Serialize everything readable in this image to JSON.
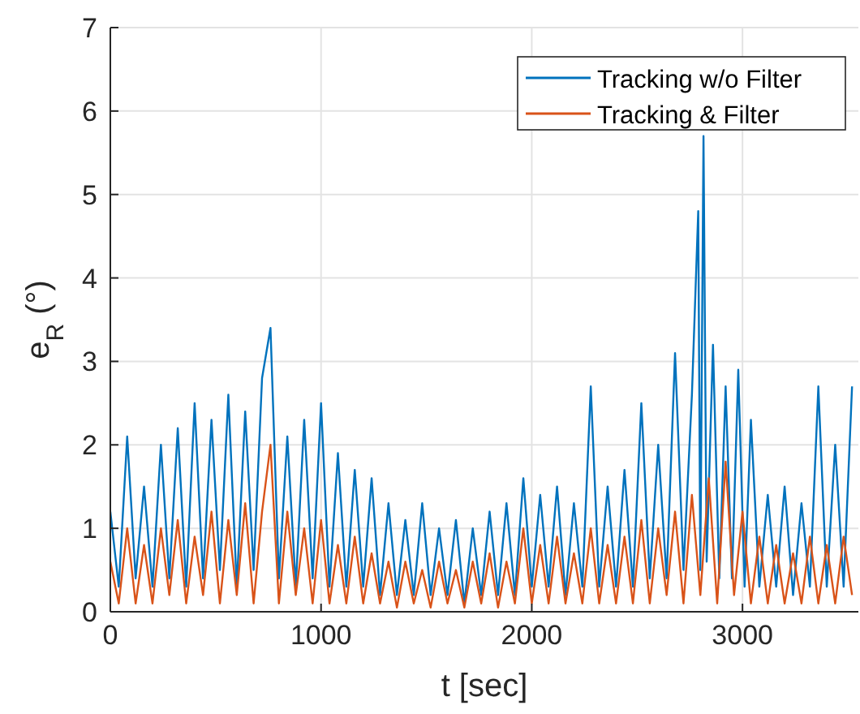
{
  "chart_data": {
    "type": "line",
    "xlabel": "t [sec]",
    "ylabel": "e$_{R}$ (°)",
    "xlim": [
      0,
      3550
    ],
    "xticks": [
      0,
      1000,
      2000,
      3000
    ],
    "ylim": [
      0,
      7
    ],
    "yticks": [
      0,
      1,
      2,
      3,
      4,
      5,
      6,
      7
    ],
    "grid": true,
    "legend": "top right",
    "line_style": "solid",
    "marker": "none",
    "series": [
      {
        "name": "Tracking w/o Filter",
        "color": "#0072bd",
        "x": [
          0,
          40,
          80,
          120,
          160,
          200,
          240,
          280,
          320,
          360,
          400,
          440,
          480,
          520,
          560,
          600,
          640,
          680,
          720,
          760,
          800,
          840,
          880,
          920,
          960,
          1000,
          1040,
          1080,
          1120,
          1160,
          1200,
          1240,
          1280,
          1320,
          1360,
          1400,
          1440,
          1480,
          1520,
          1560,
          1600,
          1640,
          1680,
          1720,
          1760,
          1800,
          1840,
          1880,
          1920,
          1960,
          2000,
          2040,
          2080,
          2120,
          2160,
          2200,
          2240,
          2280,
          2320,
          2360,
          2400,
          2440,
          2480,
          2520,
          2560,
          2600,
          2640,
          2680,
          2720,
          2760,
          2790,
          2800,
          2815,
          2830,
          2860,
          2890,
          2920,
          2950,
          2980,
          3010,
          3040,
          3080,
          3120,
          3160,
          3200,
          3240,
          3280,
          3320,
          3360,
          3400,
          3440,
          3480,
          3520
        ],
        "values": [
          1.2,
          0.3,
          2.1,
          0.4,
          1.5,
          0.3,
          2.0,
          0.4,
          2.2,
          0.3,
          2.5,
          0.4,
          2.3,
          0.5,
          2.6,
          0.3,
          2.4,
          0.5,
          2.8,
          3.4,
          0.4,
          2.1,
          0.3,
          2.3,
          0.4,
          2.5,
          0.3,
          1.9,
          0.3,
          1.7,
          0.3,
          1.6,
          0.2,
          1.3,
          0.2,
          1.1,
          0.2,
          1.3,
          0.2,
          1.0,
          0.2,
          1.1,
          0.1,
          1.0,
          0.2,
          1.2,
          0.2,
          1.3,
          0.2,
          1.6,
          0.3,
          1.4,
          0.3,
          1.5,
          0.2,
          1.3,
          0.3,
          2.7,
          0.3,
          1.5,
          0.3,
          1.7,
          0.3,
          2.5,
          0.4,
          2.0,
          0.4,
          3.1,
          0.5,
          2.6,
          4.8,
          0.5,
          5.7,
          0.6,
          3.2,
          0.4,
          2.7,
          0.4,
          2.9,
          0.3,
          2.3,
          0.3,
          1.4,
          0.3,
          1.5,
          0.2,
          1.3,
          0.3,
          2.7,
          0.3,
          2.0,
          0.3,
          2.7
        ]
      },
      {
        "name": "Tracking & Filter",
        "color": "#d95319",
        "x": [
          0,
          40,
          80,
          120,
          160,
          200,
          240,
          280,
          320,
          360,
          400,
          440,
          480,
          520,
          560,
          600,
          640,
          680,
          720,
          760,
          800,
          840,
          880,
          920,
          960,
          1000,
          1040,
          1080,
          1120,
          1160,
          1200,
          1240,
          1280,
          1320,
          1360,
          1400,
          1440,
          1480,
          1520,
          1560,
          1600,
          1640,
          1680,
          1720,
          1760,
          1800,
          1840,
          1880,
          1920,
          1960,
          2000,
          2040,
          2080,
          2120,
          2160,
          2200,
          2240,
          2280,
          2320,
          2360,
          2400,
          2440,
          2480,
          2520,
          2560,
          2600,
          2640,
          2680,
          2720,
          2760,
          2800,
          2840,
          2880,
          2920,
          2960,
          3000,
          3040,
          3080,
          3120,
          3160,
          3200,
          3240,
          3280,
          3320,
          3360,
          3400,
          3440,
          3480,
          3520
        ],
        "values": [
          0.6,
          0.1,
          1.0,
          0.1,
          0.8,
          0.1,
          1.0,
          0.2,
          1.1,
          0.1,
          0.9,
          0.2,
          1.2,
          0.1,
          1.1,
          0.2,
          1.3,
          0.1,
          1.2,
          2.0,
          0.1,
          1.2,
          0.2,
          1.0,
          0.1,
          1.1,
          0.1,
          0.8,
          0.1,
          0.9,
          0.1,
          0.7,
          0.1,
          0.6,
          0.05,
          0.6,
          0.1,
          0.5,
          0.05,
          0.6,
          0.1,
          0.5,
          0.05,
          0.6,
          0.1,
          0.7,
          0.05,
          0.6,
          0.1,
          1.0,
          0.1,
          0.8,
          0.1,
          0.9,
          0.1,
          0.7,
          0.1,
          1.0,
          0.1,
          0.8,
          0.1,
          0.9,
          0.1,
          1.1,
          0.1,
          1.0,
          0.2,
          1.2,
          0.1,
          1.4,
          0.2,
          1.6,
          0.1,
          1.8,
          0.2,
          1.2,
          0.1,
          0.9,
          0.1,
          0.8,
          0.1,
          0.7,
          0.1,
          0.9,
          0.1,
          0.8,
          0.1,
          0.9,
          0.2
        ]
      }
    ]
  }
}
